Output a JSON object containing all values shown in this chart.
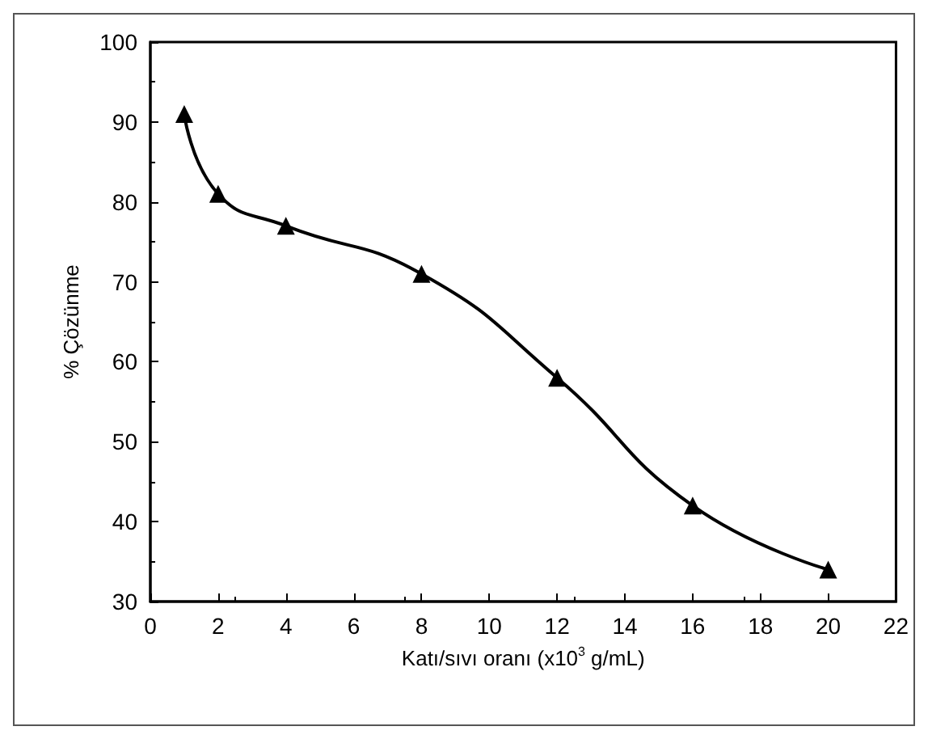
{
  "chart_data": {
    "type": "line",
    "xlabel": "Katı/sıvı oranı (x10$^{3}$ g/mL)",
    "ylabel": "% Çözünme",
    "x": [
      1,
      2,
      4,
      8,
      12,
      16,
      20
    ],
    "series": [
      {
        "color": "#000000",
        "values": [
          91,
          81,
          77,
          71,
          58,
          42,
          34
        ]
      }
    ],
    "xlim": [
      0,
      22
    ],
    "xticks": [
      0,
      2,
      4,
      6,
      8,
      10,
      12,
      14,
      16,
      18,
      20,
      22
    ],
    "ylim": [
      30,
      100
    ],
    "yticks": [
      30,
      40,
      50,
      60,
      70,
      80,
      90,
      100
    ],
    "marker": "triangle",
    "line_style": "solid",
    "grid": false
  }
}
